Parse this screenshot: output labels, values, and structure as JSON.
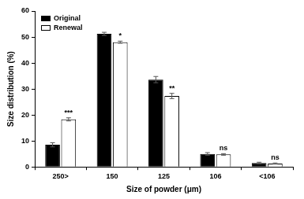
{
  "chart_data": {
    "type": "bar",
    "x_label": "Size of powder (μm)",
    "y_label": "Size distribution (%)",
    "categories": [
      "250>",
      "150",
      "125",
      "106",
      "<106"
    ],
    "series": [
      {
        "name": "Original",
        "color": "#000000",
        "values": [
          8.5,
          51.2,
          33.6,
          5.0,
          1.5
        ],
        "error": [
          0.8,
          0.6,
          1.2,
          0.5,
          0.3
        ]
      },
      {
        "name": "Renewal",
        "color": "#ffffff",
        "values": [
          18.3,
          48.0,
          27.3,
          4.8,
          1.3
        ],
        "error": [
          0.6,
          0.4,
          1.0,
          0.3,
          0.2
        ],
        "annotations": [
          "***",
          "*",
          "**",
          "ns",
          "ns"
        ]
      }
    ],
    "ylim": [
      0,
      60
    ],
    "yticks": [
      0,
      10,
      20,
      30,
      40,
      50,
      60
    ],
    "grid": false,
    "legend": "upper left"
  }
}
